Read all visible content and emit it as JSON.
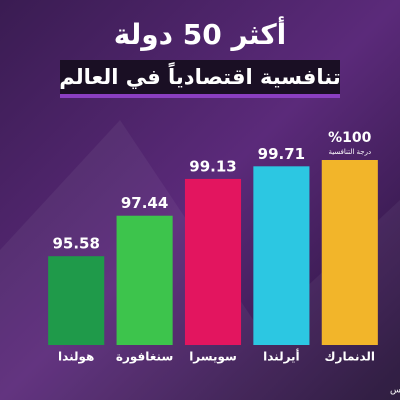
{
  "chart_data": {
    "type": "bar",
    "title": "أكثر 50 دولة",
    "subtitle": "تنافسية اقتصادياً في العالم",
    "categories": [
      "هولندا",
      "سنغافورة",
      "سويسرا",
      "أيرلندا",
      "الدنمارك"
    ],
    "values": [
      95.58,
      97.44,
      99.13,
      99.71,
      100
    ],
    "value_labels": [
      "95.58",
      "97.44",
      "99.13",
      "99.71",
      "%100"
    ],
    "colors": [
      "#1f9a4a",
      "#3dc44c",
      "#e3155f",
      "#2cc7e2",
      "#f2b52a"
    ],
    "annotation": "درجة التنافسية",
    "source": "المصدر: ياهو فاينانس",
    "ylim": [
      91.5,
      100
    ]
  }
}
